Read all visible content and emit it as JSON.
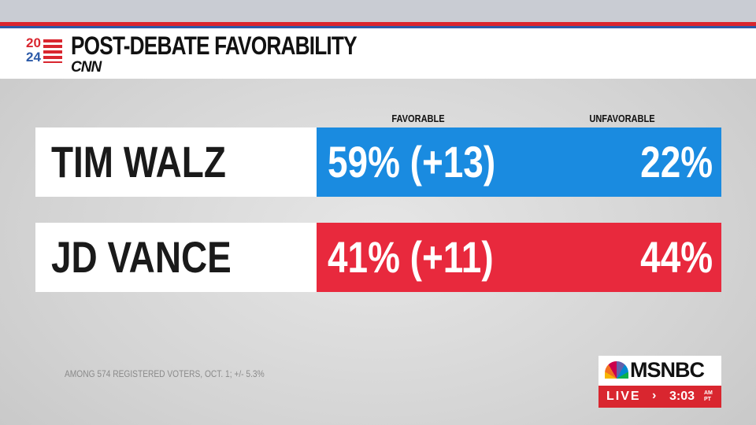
{
  "header": {
    "logo_top": "20",
    "logo_bottom": "24",
    "network": "CNN",
    "title": "POST-DEBATE FAVORABILITY"
  },
  "columns": [
    "FAVORABLE",
    "UNFAVORABLE"
  ],
  "rows": [
    {
      "name": "TIM WALZ",
      "favorable": "59% (+13)",
      "unfavorable": "22%"
    },
    {
      "name": "JD VANCE",
      "favorable": "41% (+11)",
      "unfavorable": "44%"
    }
  ],
  "footnote": "AMONG 574 REGISTERED VOTERS, OCT. 1; +/- 5.3%",
  "bug": {
    "network": "MSNBC",
    "live": "LIVE",
    "time": "3:03",
    "ampm": "AM",
    "zone": "PT"
  }
}
